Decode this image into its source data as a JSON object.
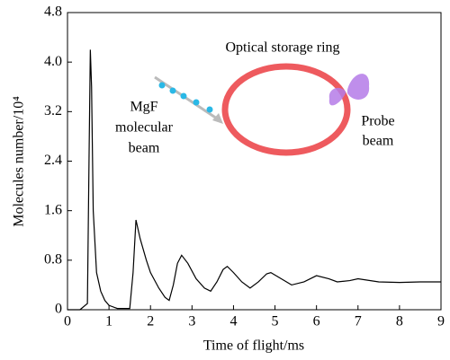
{
  "chart_data": {
    "type": "line",
    "x_label": "Time of flight/ms",
    "y_label": "Molecules number/10⁴",
    "annotations": {
      "ring": "Optical storage ring",
      "molecular_beam": [
        "MgF",
        "molecular",
        "beam"
      ],
      "probe_beam": [
        "Probe",
        "beam"
      ]
    },
    "color": "#000000",
    "x": [
      0,
      0.3,
      0.48,
      0.52,
      0.55,
      0.58,
      0.62,
      0.7,
      0.8,
      0.9,
      1.0,
      1.2,
      1.5,
      1.58,
      1.65,
      1.75,
      1.9,
      2.0,
      2.2,
      2.35,
      2.45,
      2.55,
      2.65,
      2.75,
      2.9,
      3.1,
      3.3,
      3.45,
      3.6,
      3.75,
      3.85,
      4.0,
      4.2,
      4.4,
      4.6,
      4.8,
      4.9,
      5.1,
      5.4,
      5.7,
      6.0,
      6.3,
      6.5,
      6.8,
      7.0,
      7.5,
      8.0,
      8.5,
      9.0
    ],
    "values": [
      0,
      0,
      0.1,
      2.5,
      4.2,
      3.6,
      1.6,
      0.6,
      0.3,
      0.15,
      0.07,
      0.02,
      0.02,
      0.6,
      1.45,
      1.15,
      0.8,
      0.6,
      0.35,
      0.2,
      0.15,
      0.4,
      0.75,
      0.88,
      0.75,
      0.5,
      0.35,
      0.3,
      0.45,
      0.65,
      0.7,
      0.6,
      0.45,
      0.35,
      0.45,
      0.58,
      0.6,
      0.52,
      0.4,
      0.45,
      0.55,
      0.5,
      0.45,
      0.47,
      0.5,
      0.45,
      0.44,
      0.45,
      0.45
    ],
    "xlim": [
      0,
      9
    ],
    "ylim": [
      0,
      4.8
    ],
    "xticks": [
      0,
      1,
      2,
      3,
      4,
      5,
      6,
      7,
      8,
      9
    ],
    "yticks": [
      0,
      0.8,
      1.6,
      2.4,
      3.2,
      {
        "value": 4,
        "label": "4.0"
      },
      4.8
    ]
  }
}
